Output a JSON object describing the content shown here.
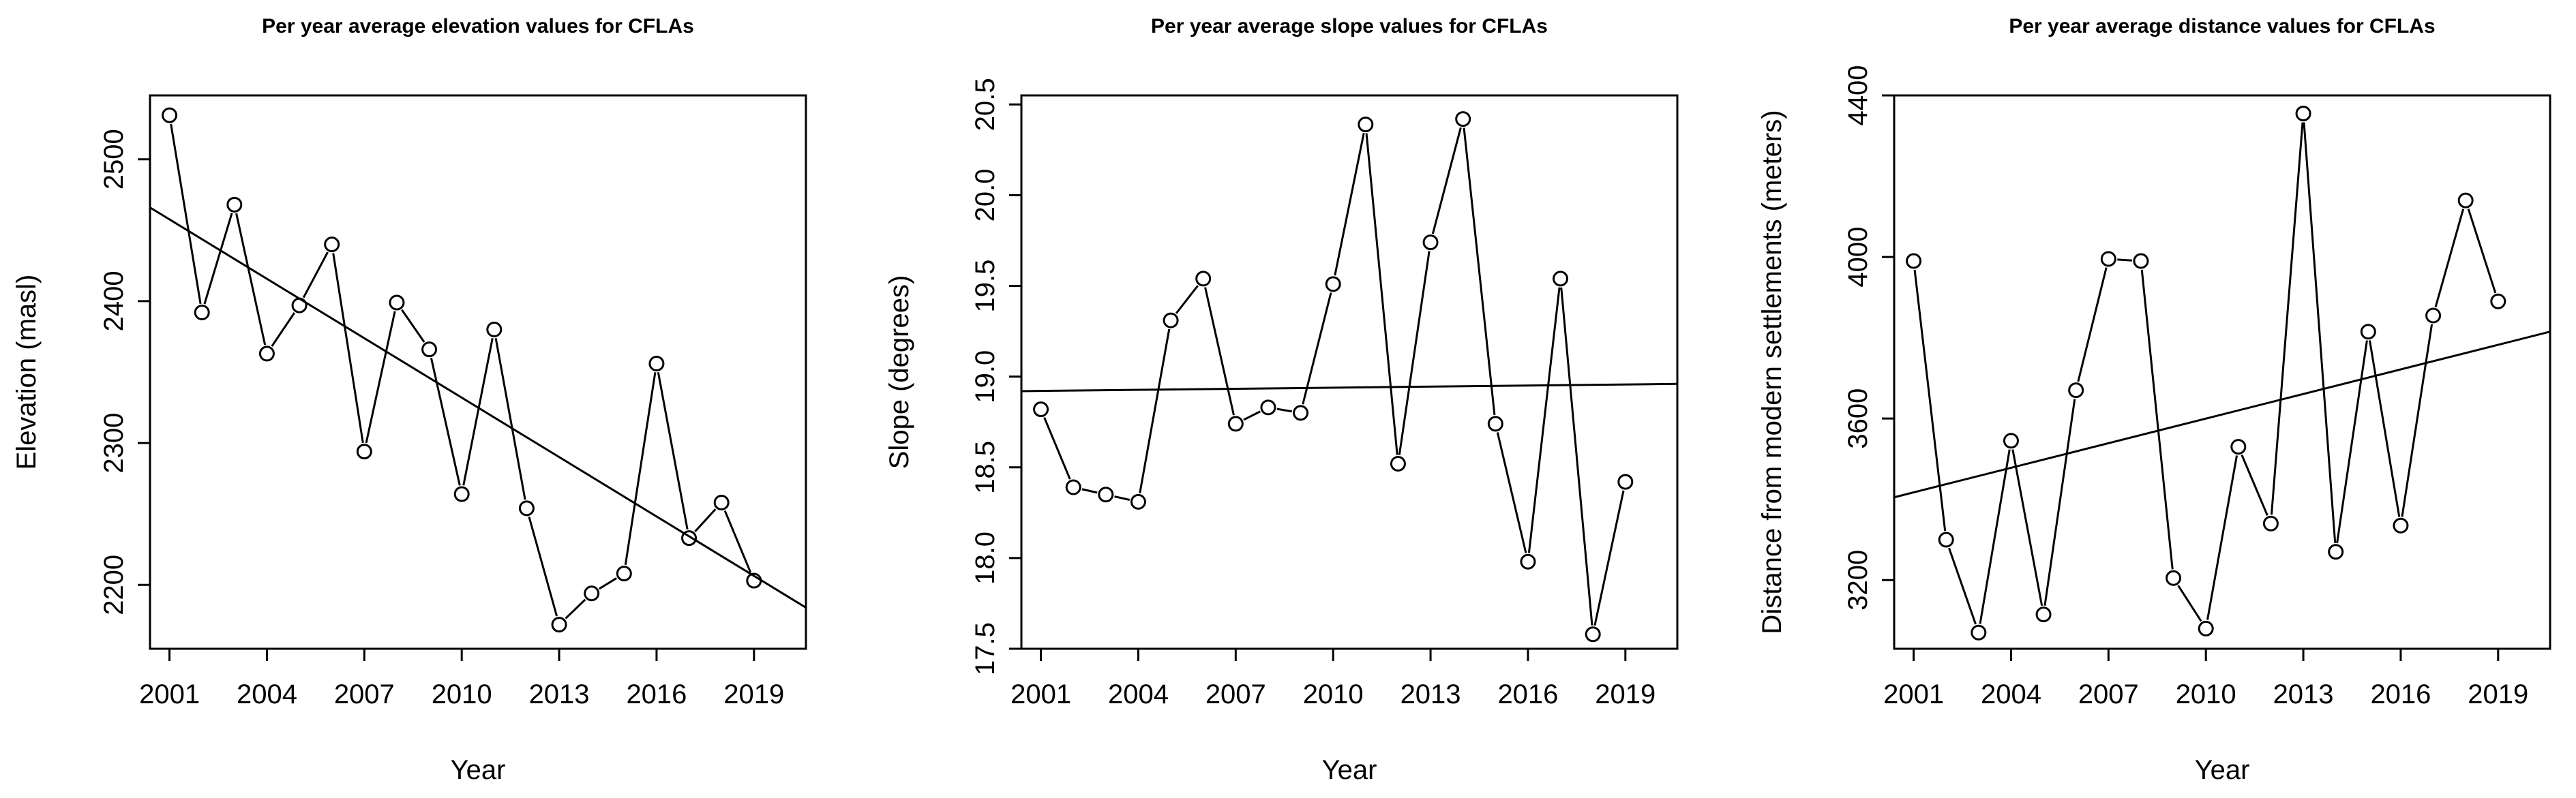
{
  "chart_data": [
    {
      "type": "line",
      "title": "Per year average elevation values for CFLAs",
      "xlabel": "Year",
      "ylabel": "Elevation (masl)",
      "xlim": [
        2000.4,
        2020.6
      ],
      "ylim": [
        2155,
        2545
      ],
      "xticks": [
        2001,
        2004,
        2007,
        2010,
        2013,
        2016,
        2019
      ],
      "yticks": [
        2200,
        2300,
        2400,
        2500
      ],
      "x": [
        2001,
        2002,
        2003,
        2004,
        2005,
        2006,
        2007,
        2008,
        2009,
        2010,
        2011,
        2012,
        2013,
        2014,
        2015,
        2016,
        2017,
        2018,
        2019
      ],
      "values": [
        2531,
        2392,
        2468,
        2363,
        2397,
        2440,
        2294,
        2399,
        2366,
        2264,
        2380,
        2254,
        2172,
        2194,
        2208,
        2356,
        2233,
        2258,
        2203
      ],
      "trend": {
        "x": [
          2000.4,
          2020.6
        ],
        "y": [
          2466,
          2184
        ]
      }
    },
    {
      "type": "line",
      "title": "Per year average slope values for CFLAs",
      "xlabel": "Year",
      "ylabel": "Slope (degrees)",
      "xlim": [
        2000.4,
        2020.6
      ],
      "ylim": [
        17.5,
        20.55
      ],
      "xticks": [
        2001,
        2004,
        2007,
        2010,
        2013,
        2016,
        2019
      ],
      "yticks": [
        "17.5",
        "18.0",
        "18.5",
        "19.0",
        "19.5",
        "20.0",
        "20.5"
      ],
      "x": [
        2001,
        2002,
        2003,
        2004,
        2005,
        2006,
        2007,
        2008,
        2009,
        2010,
        2011,
        2012,
        2013,
        2014,
        2015,
        2016,
        2017,
        2018,
        2019
      ],
      "values": [
        18.82,
        18.39,
        18.35,
        18.31,
        19.31,
        19.54,
        18.74,
        18.83,
        18.8,
        19.51,
        20.39,
        18.52,
        19.74,
        20.42,
        18.74,
        17.98,
        19.54,
        17.58,
        18.42
      ],
      "trend": {
        "x": [
          2000.4,
          2020.6
        ],
        "y": [
          18.92,
          18.96
        ]
      }
    },
    {
      "type": "line",
      "title": "Per year average distance values for CFLAs",
      "xlabel": "Year",
      "ylabel": "Distance from modern settlements (meters)",
      "xlim": [
        2000.4,
        2020.6
      ],
      "ylim": [
        3030,
        4400
      ],
      "xticks": [
        2001,
        2004,
        2007,
        2010,
        2013,
        2016,
        2019
      ],
      "yticks": [
        3200,
        3600,
        4000,
        4400
      ],
      "x": [
        2001,
        2002,
        2003,
        2004,
        2005,
        2006,
        2007,
        2008,
        2009,
        2010,
        2011,
        2012,
        2013,
        2014,
        2015,
        2016,
        2017,
        2018,
        2019
      ],
      "values": [
        3990,
        3300,
        3070,
        3545,
        3115,
        3670,
        3995,
        3990,
        3205,
        3080,
        3530,
        3340,
        4355,
        3270,
        3815,
        3335,
        3855,
        4140,
        3890
      ],
      "trend": {
        "x": [
          2000.4,
          2020.6
        ],
        "y": [
          3405,
          3815
        ]
      }
    }
  ]
}
